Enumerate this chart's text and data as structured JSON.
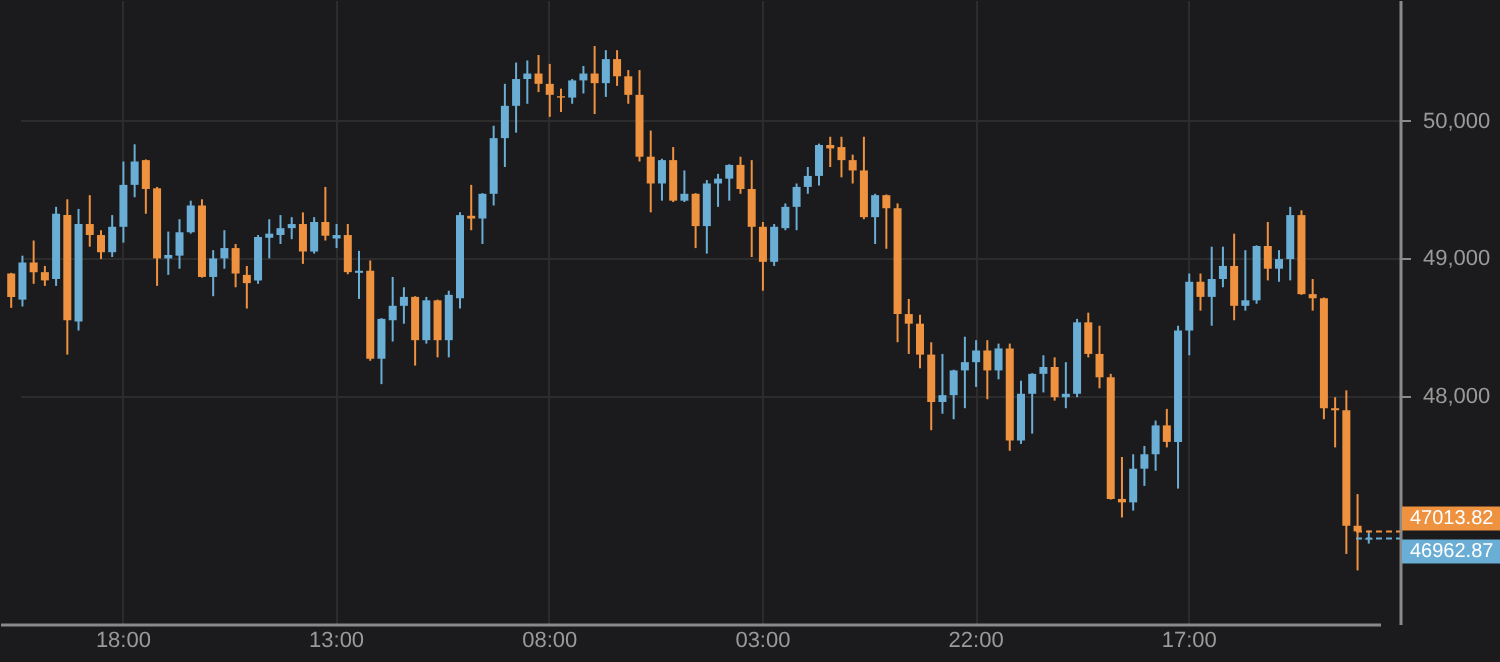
{
  "chart_data": {
    "type": "candlestick",
    "categories": [
      null,
      null,
      null,
      null,
      null,
      null,
      null,
      null,
      null,
      null,
      "18:00",
      null,
      null,
      null,
      null,
      null,
      null,
      null,
      null,
      null,
      null,
      null,
      null,
      null,
      null,
      null,
      null,
      null,
      null,
      "13:00",
      null,
      null,
      null,
      null,
      null,
      null,
      null,
      null,
      null,
      null,
      null,
      null,
      null,
      null,
      null,
      null,
      null,
      null,
      "08:00",
      null,
      null,
      null,
      null,
      null,
      null,
      null,
      null,
      null,
      null,
      null,
      null,
      null,
      null,
      null,
      null,
      null,
      null,
      "03:00",
      null,
      null,
      null,
      null,
      null,
      null,
      null,
      null,
      null,
      null,
      null,
      null,
      null,
      null,
      null,
      null,
      null,
      null,
      "22:00",
      null,
      null,
      null,
      null,
      null,
      null,
      null,
      null,
      null,
      null,
      null,
      null,
      null,
      null,
      null,
      null,
      null,
      null,
      "17:00",
      null,
      null,
      null,
      null,
      null,
      null,
      null,
      null,
      null,
      null,
      null,
      null,
      null,
      null,
      null,
      null
    ],
    "ohlc": [
      [
        48890,
        48895,
        48640,
        48720
      ],
      [
        48700,
        49020,
        48650,
        48970
      ],
      [
        48970,
        49130,
        48815,
        48900
      ],
      [
        48900,
        48945,
        48800,
        48840
      ],
      [
        48850,
        49375,
        48800,
        49325
      ],
      [
        49315,
        49430,
        48300,
        48550
      ],
      [
        48540,
        49360,
        48475,
        49250
      ],
      [
        49250,
        49460,
        49085,
        49170
      ],
      [
        49170,
        49205,
        48995,
        49045
      ],
      [
        49045,
        49315,
        49010,
        49230
      ],
      [
        49230,
        49705,
        49115,
        49535
      ],
      [
        49535,
        49830,
        49445,
        49705
      ],
      [
        49715,
        49720,
        49325,
        49505
      ],
      [
        49510,
        49520,
        48800,
        49000
      ],
      [
        49000,
        49195,
        48880,
        49025
      ],
      [
        49020,
        49285,
        48925,
        49190
      ],
      [
        49190,
        49420,
        49180,
        49385
      ],
      [
        49385,
        49430,
        48860,
        48865
      ],
      [
        48865,
        49060,
        48725,
        49000
      ],
      [
        49000,
        49205,
        48925,
        49075
      ],
      [
        49075,
        49105,
        48790,
        48890
      ],
      [
        48880,
        48945,
        48635,
        48820
      ],
      [
        48840,
        49170,
        48815,
        49155
      ],
      [
        49150,
        49285,
        49000,
        49180
      ],
      [
        49170,
        49315,
        49105,
        49220
      ],
      [
        49220,
        49300,
        49140,
        49250
      ],
      [
        49250,
        49335,
        48960,
        49050
      ],
      [
        49050,
        49300,
        49035,
        49265
      ],
      [
        49265,
        49520,
        49130,
        49165
      ],
      [
        49145,
        49250,
        49075,
        49170
      ],
      [
        49170,
        49250,
        48885,
        48900
      ],
      [
        48895,
        49055,
        48705,
        48910
      ],
      [
        48910,
        48985,
        48255,
        48270
      ],
      [
        48270,
        48565,
        48085,
        48560
      ],
      [
        48550,
        48865,
        48395,
        48655
      ],
      [
        48655,
        48790,
        48525,
        48720
      ],
      [
        48720,
        48725,
        48220,
        48405
      ],
      [
        48405,
        48720,
        48380,
        48695
      ],
      [
        48695,
        48700,
        48280,
        48405
      ],
      [
        48405,
        48765,
        48280,
        48735
      ],
      [
        48710,
        49335,
        48635,
        49315
      ],
      [
        49310,
        49535,
        49205,
        49290
      ],
      [
        49290,
        49475,
        49105,
        49470
      ],
      [
        49470,
        49965,
        49385,
        49875
      ],
      [
        49875,
        50270,
        49665,
        50110
      ],
      [
        50110,
        50425,
        49915,
        50305
      ],
      [
        50305,
        50440,
        50125,
        50345
      ],
      [
        50345,
        50480,
        50210,
        50270
      ],
      [
        50270,
        50415,
        50030,
        50190
      ],
      [
        50180,
        50235,
        50065,
        50170
      ],
      [
        50170,
        50305,
        50125,
        50295
      ],
      [
        50295,
        50400,
        50200,
        50345
      ],
      [
        50345,
        50545,
        50050,
        50275
      ],
      [
        50275,
        50515,
        50175,
        50450
      ],
      [
        50450,
        50515,
        50255,
        50325
      ],
      [
        50325,
        50370,
        50125,
        50190
      ],
      [
        50190,
        50370,
        49705,
        49740
      ],
      [
        49740,
        49930,
        49335,
        49545
      ],
      [
        49545,
        49725,
        49420,
        49715
      ],
      [
        49715,
        49810,
        49410,
        49420
      ],
      [
        49420,
        49640,
        49410,
        49470
      ],
      [
        49470,
        49475,
        49075,
        49235
      ],
      [
        49235,
        49570,
        49035,
        49545
      ],
      [
        49545,
        49615,
        49375,
        49580
      ],
      [
        49580,
        49685,
        49420,
        49680
      ],
      [
        49680,
        49740,
        49470,
        49505
      ],
      [
        49505,
        49715,
        49010,
        49230
      ],
      [
        49230,
        49265,
        48765,
        48975
      ],
      [
        48975,
        49250,
        48945,
        49230
      ],
      [
        49220,
        49400,
        49205,
        49375
      ],
      [
        49375,
        49545,
        49205,
        49520
      ],
      [
        49520,
        49665,
        49470,
        49600
      ],
      [
        49600,
        49835,
        49530,
        49825
      ],
      [
        49825,
        49885,
        49665,
        49800
      ],
      [
        49810,
        49885,
        49590,
        49715
      ],
      [
        49715,
        49755,
        49545,
        49640
      ],
      [
        49640,
        49885,
        49285,
        49300
      ],
      [
        49300,
        49470,
        49105,
        49460
      ],
      [
        49460,
        49465,
        49070,
        49365
      ],
      [
        49365,
        49400,
        48390,
        48595
      ],
      [
        48595,
        48705,
        48305,
        48525
      ],
      [
        48525,
        48590,
        48200,
        48300
      ],
      [
        48300,
        48390,
        47750,
        47955
      ],
      [
        47955,
        48305,
        47870,
        48005
      ],
      [
        48005,
        48190,
        47830,
        48185
      ],
      [
        48185,
        48430,
        47910,
        48245
      ],
      [
        48245,
        48405,
        48065,
        48330
      ],
      [
        48330,
        48405,
        47975,
        48185
      ],
      [
        48185,
        48380,
        48120,
        48345
      ],
      [
        48345,
        48380,
        47600,
        47675
      ],
      [
        47675,
        48110,
        47650,
        48015
      ],
      [
        48015,
        48165,
        47725,
        48160
      ],
      [
        48160,
        48295,
        48025,
        48210
      ],
      [
        48210,
        48280,
        47965,
        47990
      ],
      [
        47990,
        48245,
        47910,
        48015
      ],
      [
        48015,
        48560,
        47990,
        48535
      ],
      [
        48535,
        48605,
        48280,
        48305
      ],
      [
        48305,
        48510,
        48055,
        48135
      ],
      [
        48135,
        48160,
        47245,
        47250
      ],
      [
        47250,
        47555,
        47115,
        47225
      ],
      [
        47225,
        47575,
        47165,
        47470
      ],
      [
        47470,
        47635,
        47345,
        47575
      ],
      [
        47575,
        47820,
        47455,
        47785
      ],
      [
        47785,
        47905,
        47625,
        47665
      ],
      [
        47665,
        48510,
        47325,
        48475
      ],
      [
        48475,
        48890,
        48295,
        48830
      ],
      [
        48830,
        48890,
        48620,
        48720
      ],
      [
        48720,
        49085,
        48510,
        48850
      ],
      [
        48850,
        49085,
        48790,
        48945
      ],
      [
        48945,
        49180,
        48550,
        48655
      ],
      [
        48655,
        49060,
        48620,
        48695
      ],
      [
        48695,
        49095,
        48670,
        49090
      ],
      [
        49090,
        49265,
        48840,
        48925
      ],
      [
        48925,
        49060,
        48830,
        48995
      ],
      [
        48995,
        49375,
        48840,
        49315
      ],
      [
        49315,
        49350,
        48735,
        48740
      ],
      [
        48740,
        48850,
        48620,
        48710
      ],
      [
        48710,
        48715,
        47830,
        47910
      ],
      [
        47910,
        47990,
        47625,
        47895
      ],
      [
        47895,
        48040,
        46850,
        47055
      ],
      [
        47055,
        47285,
        46730,
        47014
      ],
      [
        46955,
        47020,
        46925,
        46963
      ]
    ],
    "colors": [
      "#ee9240",
      "#6aaed6",
      "#ee9240",
      "#ee9240",
      "#6aaed6",
      "#ee9240",
      "#6aaed6",
      "#ee9240",
      "#ee9240",
      "#6aaed6",
      "#6aaed6",
      "#6aaed6",
      "#ee9240",
      "#ee9240",
      "#6aaed6",
      "#6aaed6",
      "#6aaed6",
      "#ee9240",
      "#6aaed6",
      "#6aaed6",
      "#ee9240",
      "#ee9240",
      "#6aaed6",
      "#6aaed6",
      "#6aaed6",
      "#6aaed6",
      "#ee9240",
      "#6aaed6",
      "#ee9240",
      "#6aaed6",
      "#ee9240",
      "#6aaed6",
      "#ee9240",
      "#6aaed6",
      "#6aaed6",
      "#6aaed6",
      "#ee9240",
      "#6aaed6",
      "#ee9240",
      "#6aaed6",
      "#6aaed6",
      "#ee9240",
      "#6aaed6",
      "#6aaed6",
      "#6aaed6",
      "#6aaed6",
      "#6aaed6",
      "#ee9240",
      "#ee9240",
      "#ee9240",
      "#6aaed6",
      "#6aaed6",
      "#ee9240",
      "#6aaed6",
      "#ee9240",
      "#ee9240",
      "#ee9240",
      "#ee9240",
      "#6aaed6",
      "#ee9240",
      "#6aaed6",
      "#ee9240",
      "#6aaed6",
      "#6aaed6",
      "#6aaed6",
      "#ee9240",
      "#ee9240",
      "#ee9240",
      "#6aaed6",
      "#6aaed6",
      "#6aaed6",
      "#6aaed6",
      "#6aaed6",
      "#ee9240",
      "#ee9240",
      "#ee9240",
      "#ee9240",
      "#6aaed6",
      "#ee9240",
      "#ee9240",
      "#ee9240",
      "#ee9240",
      "#ee9240",
      "#6aaed6",
      "#6aaed6",
      "#6aaed6",
      "#6aaed6",
      "#ee9240",
      "#6aaed6",
      "#ee9240",
      "#6aaed6",
      "#6aaed6",
      "#6aaed6",
      "#ee9240",
      "#6aaed6",
      "#6aaed6",
      "#ee9240",
      "#ee9240",
      "#ee9240",
      "#ee9240",
      "#6aaed6",
      "#6aaed6",
      "#6aaed6",
      "#ee9240",
      "#6aaed6",
      "#6aaed6",
      "#ee9240",
      "#6aaed6",
      "#6aaed6",
      "#ee9240",
      "#6aaed6",
      "#6aaed6",
      "#ee9240",
      "#6aaed6",
      "#6aaed6",
      "#ee9240",
      "#ee9240",
      "#ee9240",
      "#ee9240",
      "#ee9240",
      "#ee9240",
      "#6aaed6"
    ],
    "ylim": [
      46340,
      50880
    ],
    "yticks": [
      {
        "value": 48000,
        "label": "48,000"
      },
      {
        "value": 49000,
        "label": "49,000"
      },
      {
        "value": 50000,
        "label": "50,000"
      }
    ],
    "grid": true,
    "ref_lines": [
      {
        "axis": "y",
        "value": 47013.82,
        "label": "47013.82",
        "color": "#ee9240",
        "line_style": "dashed"
      },
      {
        "axis": "y",
        "value": 46962.87,
        "label": "46962.87",
        "color": "#6aaed6",
        "line_style": "dashed"
      }
    ]
  }
}
